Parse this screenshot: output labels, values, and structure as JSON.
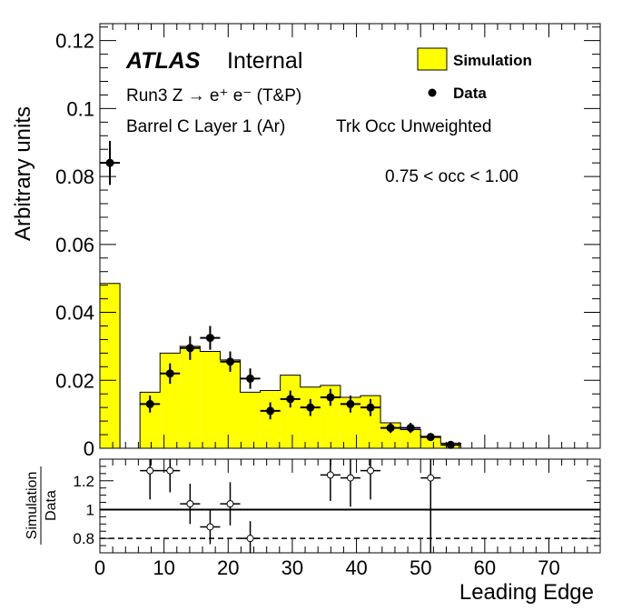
{
  "chart_data": [
    {
      "type": "bar",
      "title": "",
      "xlabel": "",
      "ylabel": "Arbitrary units",
      "xlim": [
        0,
        78
      ],
      "ylim": [
        0,
        0.125
      ],
      "yticks": [
        0,
        0.02,
        0.04,
        0.06,
        0.08,
        0.1,
        0.12
      ],
      "ytick_labels": [
        "0",
        "0.02",
        "0.04",
        "0.06",
        "0.08",
        "0.1",
        "0.12"
      ],
      "bin_width": 3.125,
      "annotations": {
        "atlas": "ATLAS",
        "internal": "Internal",
        "process": "Run3 Z → e⁺ e⁻ (T&P)",
        "region": "Barrel C Layer 1 (Ar)",
        "weighting": "Trk Occ Unweighted",
        "selection": "0.75 < occ < 1.00"
      },
      "legend": {
        "placement": "top-right",
        "entries": [
          {
            "label": "Simulation",
            "style": "filled-box",
            "color": "#ffff00"
          },
          {
            "label": "Data",
            "style": "marker",
            "color": "#000000"
          }
        ]
      },
      "series": [
        {
          "name": "Simulation",
          "style": "step-filled",
          "color": "#ffff00",
          "bins": [
            [
              0,
              0.0485
            ],
            [
              3.125,
              0
            ],
            [
              6.25,
              0.0165
            ],
            [
              9.375,
              0.028
            ],
            [
              12.5,
              0.03
            ],
            [
              15.625,
              0.0285
            ],
            [
              18.75,
              0.026
            ],
            [
              21.875,
              0.0165
            ],
            [
              25,
              0.017
            ],
            [
              28.125,
              0.0215
            ],
            [
              31.25,
              0.018
            ],
            [
              34.375,
              0.0185
            ],
            [
              37.5,
              0.015
            ],
            [
              40.625,
              0.0155
            ],
            [
              43.75,
              0.0075
            ],
            [
              46.875,
              0.0055
            ],
            [
              50,
              0.0035
            ],
            [
              53.125,
              0.0015
            ]
          ]
        },
        {
          "name": "Data",
          "style": "marker",
          "color": "#000000",
          "points": [
            {
              "x": 1.5625,
              "y": 0.084,
              "err": 0.0065
            },
            {
              "x": 7.8125,
              "y": 0.013,
              "err": 0.0025
            },
            {
              "x": 10.9375,
              "y": 0.022,
              "err": 0.003
            },
            {
              "x": 14.0625,
              "y": 0.0295,
              "err": 0.0035
            },
            {
              "x": 17.1875,
              "y": 0.0325,
              "err": 0.0035
            },
            {
              "x": 20.3125,
              "y": 0.0255,
              "err": 0.003
            },
            {
              "x": 23.4375,
              "y": 0.0205,
              "err": 0.003
            },
            {
              "x": 26.5625,
              "y": 0.011,
              "err": 0.0025
            },
            {
              "x": 29.6875,
              "y": 0.0145,
              "err": 0.0025
            },
            {
              "x": 32.8125,
              "y": 0.012,
              "err": 0.0025
            },
            {
              "x": 35.9375,
              "y": 0.015,
              "err": 0.0025
            },
            {
              "x": 39.0625,
              "y": 0.013,
              "err": 0.0025
            },
            {
              "x": 42.1875,
              "y": 0.012,
              "err": 0.0025
            },
            {
              "x": 45.3125,
              "y": 0.006,
              "err": 0.0015
            },
            {
              "x": 48.4375,
              "y": 0.006,
              "err": 0.0015
            },
            {
              "x": 51.5625,
              "y": 0.0033,
              "err": 0.001
            },
            {
              "x": 54.6875,
              "y": 0.001,
              "err": 0.0005
            }
          ]
        }
      ]
    },
    {
      "type": "scatter",
      "title": "",
      "xlabel": "Leading Edge",
      "ylabel_top": "Simulation",
      "ylabel_bottom": "Data",
      "xlim": [
        0,
        78
      ],
      "ylim": [
        0.7,
        1.35
      ],
      "xticks": [
        0,
        10,
        20,
        30,
        40,
        50,
        60,
        70
      ],
      "xtick_labels": [
        "0",
        "10",
        "20",
        "30",
        "40",
        "50",
        "60",
        "70"
      ],
      "yticks": [
        0.8,
        1,
        1.2
      ],
      "ytick_labels": [
        "0.8",
        "1",
        "1.2"
      ],
      "reference_lines": [
        {
          "y": 1.0,
          "style": "solid"
        },
        {
          "y": 0.8,
          "style": "dashed"
        }
      ],
      "series": [
        {
          "name": "Simulation/Data",
          "style": "open-marker",
          "points": [
            {
              "x": 7.8125,
              "y": 1.27,
              "err": 0.2
            },
            {
              "x": 10.9375,
              "y": 1.27,
              "err": 0.15
            },
            {
              "x": 14.0625,
              "y": 1.04,
              "err": 0.14
            },
            {
              "x": 17.1875,
              "y": 0.88,
              "err": 0.12
            },
            {
              "x": 20.3125,
              "y": 1.04,
              "err": 0.15
            },
            {
              "x": 23.4375,
              "y": 0.8,
              "err": 0.12
            },
            {
              "x": 35.9375,
              "y": 1.24,
              "err": 0.18
            },
            {
              "x": 39.0625,
              "y": 1.22,
              "err": 0.2
            },
            {
              "x": 42.1875,
              "y": 1.27,
              "err": 0.2
            },
            {
              "x": 51.5625,
              "y": 1.22,
              "err": 0.6
            }
          ]
        }
      ]
    }
  ]
}
